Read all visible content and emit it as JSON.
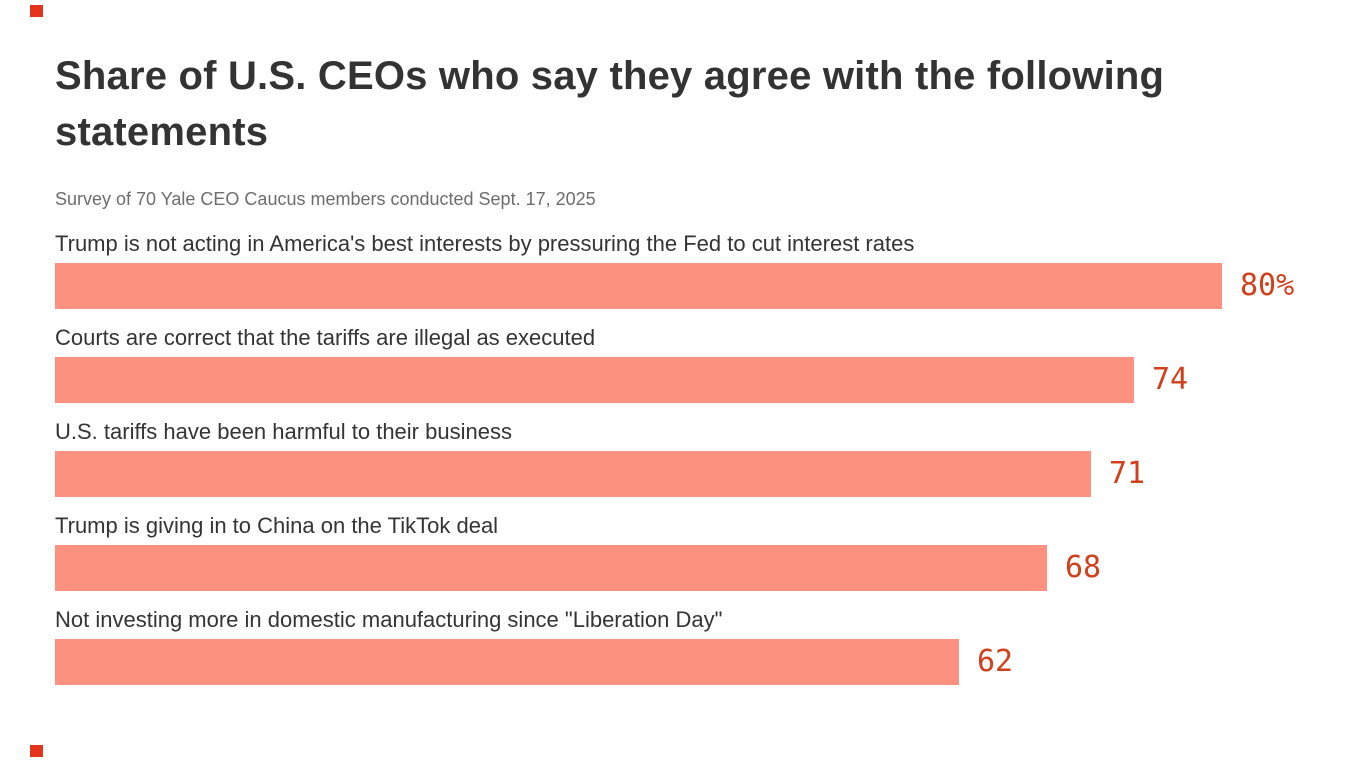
{
  "brand": {
    "accent_mark_color": "#e5341c"
  },
  "chart_data": {
    "type": "bar",
    "orientation": "horizontal",
    "title": "Share of U.S. CEOs who say they agree with the following statements",
    "subtitle": "Survey of 70 Yale CEO Caucus members conducted Sept. 17, 2025",
    "categories": [
      "Trump is not acting in America's best interests by pressuring the Fed to cut interest rates",
      "Courts are correct that the tariffs are illegal as executed",
      "U.S. tariffs have been harmful to their business",
      "Trump is giving in to China on the TikTok deal",
      "Not investing more in domestic manufacturing since \"Liberation Day\""
    ],
    "values": [
      80,
      74,
      71,
      68,
      62
    ],
    "value_labels": [
      "80%",
      "74",
      "71",
      "68",
      "62"
    ],
    "unit": "%",
    "xlim": [
      0,
      80
    ],
    "grid": false,
    "legend": false,
    "bar_color": "#fc9180",
    "value_color": "#d23f1a"
  }
}
